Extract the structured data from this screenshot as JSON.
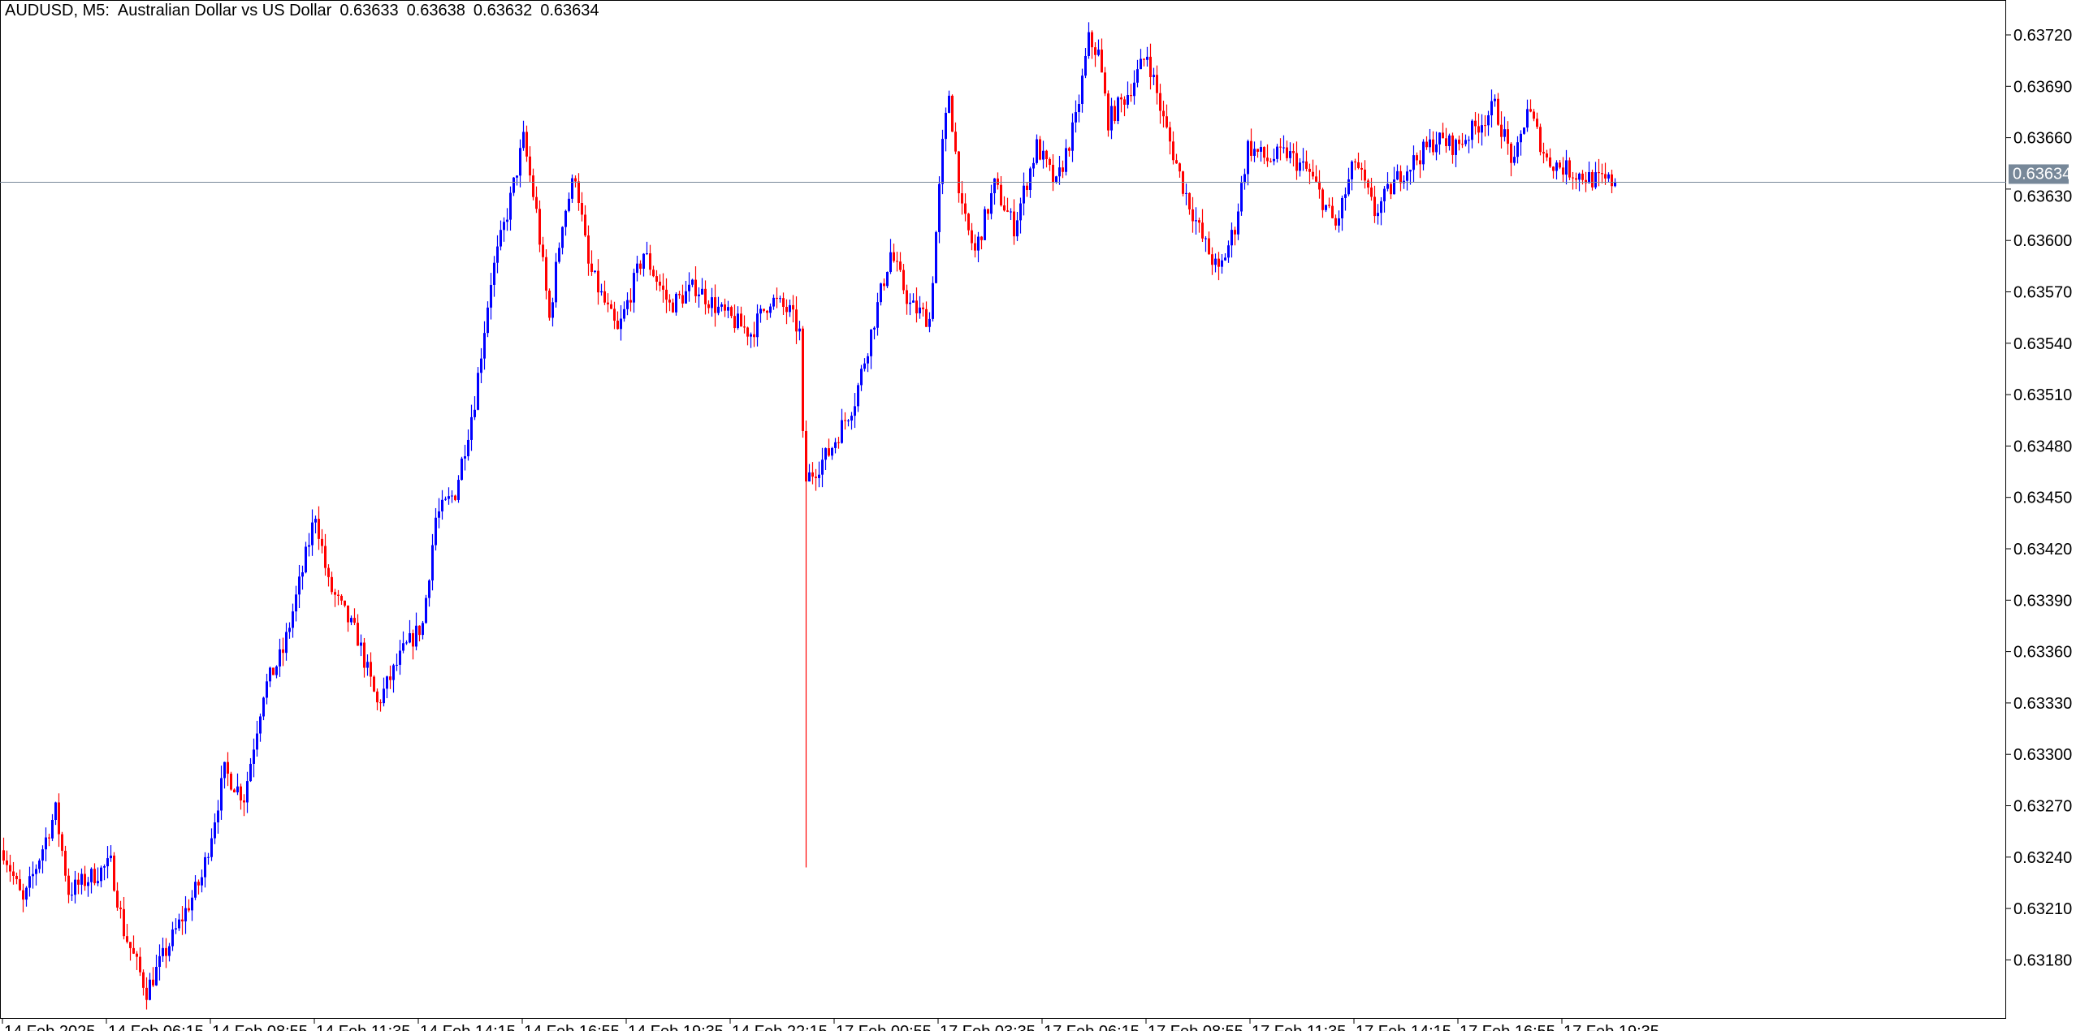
{
  "header": {
    "symbol": "AUDUSD, M5:",
    "description": "Australian Dollar vs US Dollar",
    "open": "0.63633",
    "high": "0.63638",
    "low": "0.63632",
    "close": "0.63634"
  },
  "colors": {
    "bull": "#0000ff",
    "bear": "#ff0000",
    "price_line": "#778899",
    "price_tag_bg": "#778899",
    "axis": "#000000"
  },
  "chart_data": {
    "type": "candlestick",
    "symbol": "AUDUSD",
    "timeframe": "M5",
    "ylim": [
      0.6316,
      0.6374
    ],
    "y_ticks": [
      "0.63720",
      "0.63690",
      "0.63660",
      "0.63630",
      "0.63600",
      "0.63570",
      "0.63540",
      "0.63510",
      "0.63480",
      "0.63450",
      "0.63420",
      "0.63390",
      "0.63360",
      "0.63330",
      "0.63300",
      "0.63270",
      "0.63240",
      "0.63210",
      "0.63180"
    ],
    "x_ticks": [
      "14 Feb 2025",
      "14 Feb 06:15",
      "14 Feb 08:55",
      "14 Feb 11:35",
      "14 Feb 14:15",
      "14 Feb 16:55",
      "14 Feb 19:35",
      "14 Feb 22:15",
      "17 Feb 00:55",
      "17 Feb 03:35",
      "17 Feb 06:15",
      "17 Feb 08:55",
      "17 Feb 11:35",
      "17 Feb 14:15",
      "17 Feb 16:55",
      "17 Feb 19:35"
    ],
    "bars_per_tick": 32,
    "current_price": "0.63634",
    "close_path_by_bar": [
      [
        0,
        0.63244
      ],
      [
        6,
        0.63213
      ],
      [
        16,
        0.63267
      ],
      [
        20,
        0.6322
      ],
      [
        33,
        0.63236
      ],
      [
        37,
        0.63197
      ],
      [
        44,
        0.63162
      ],
      [
        53,
        0.63197
      ],
      [
        61,
        0.63228
      ],
      [
        68,
        0.6329
      ],
      [
        74,
        0.63275
      ],
      [
        80,
        0.63337
      ],
      [
        86,
        0.6336
      ],
      [
        92,
        0.63407
      ],
      [
        96,
        0.63441
      ],
      [
        100,
        0.63399
      ],
      [
        109,
        0.63368
      ],
      [
        115,
        0.63329
      ],
      [
        123,
        0.6336
      ],
      [
        129,
        0.63376
      ],
      [
        133,
        0.63438
      ],
      [
        139,
        0.63453
      ],
      [
        145,
        0.63507
      ],
      [
        150,
        0.63577
      ],
      [
        156,
        0.63624
      ],
      [
        160,
        0.63659
      ],
      [
        164,
        0.63616
      ],
      [
        168,
        0.63554
      ],
      [
        172,
        0.63612
      ],
      [
        176,
        0.63639
      ],
      [
        180,
        0.63585
      ],
      [
        189,
        0.63546
      ],
      [
        197,
        0.63593
      ],
      [
        205,
        0.63562
      ],
      [
        213,
        0.63573
      ],
      [
        221,
        0.63558
      ],
      [
        230,
        0.63546
      ],
      [
        236,
        0.63566
      ],
      [
        242,
        0.63558
      ],
      [
        245,
        0.63546
      ],
      [
        246,
        0.63484
      ],
      [
        247,
        0.6346
      ],
      [
        254,
        0.63476
      ],
      [
        262,
        0.63507
      ],
      [
        268,
        0.63554
      ],
      [
        273,
        0.63593
      ],
      [
        279,
        0.63562
      ],
      [
        285,
        0.63554
      ],
      [
        289,
        0.63655
      ],
      [
        291,
        0.63686
      ],
      [
        295,
        0.63616
      ],
      [
        299,
        0.63593
      ],
      [
        305,
        0.63632
      ],
      [
        311,
        0.63608
      ],
      [
        318,
        0.63655
      ],
      [
        324,
        0.63632
      ],
      [
        330,
        0.6367
      ],
      [
        334,
        0.63717
      ],
      [
        337,
        0.63709
      ],
      [
        340,
        0.6367
      ],
      [
        346,
        0.63686
      ],
      [
        352,
        0.63709
      ],
      [
        357,
        0.6367
      ],
      [
        363,
        0.63632
      ],
      [
        369,
        0.63601
      ],
      [
        374,
        0.63581
      ],
      [
        379,
        0.63608
      ],
      [
        383,
        0.63655
      ],
      [
        389,
        0.63647
      ],
      [
        395,
        0.63651
      ],
      [
        402,
        0.63639
      ],
      [
        410,
        0.63608
      ],
      [
        416,
        0.63647
      ],
      [
        422,
        0.63616
      ],
      [
        430,
        0.63639
      ],
      [
        441,
        0.63659
      ],
      [
        447,
        0.63655
      ],
      [
        453,
        0.63666
      ],
      [
        459,
        0.63678
      ],
      [
        465,
        0.63643
      ],
      [
        469,
        0.63678
      ],
      [
        475,
        0.63647
      ],
      [
        484,
        0.63639
      ],
      [
        490,
        0.63635
      ],
      [
        496,
        0.63634
      ]
    ],
    "spike": {
      "bar": 247,
      "low": 0.63234
    },
    "bull_color": "#0000ff",
    "bear_color": "#ff0000"
  }
}
